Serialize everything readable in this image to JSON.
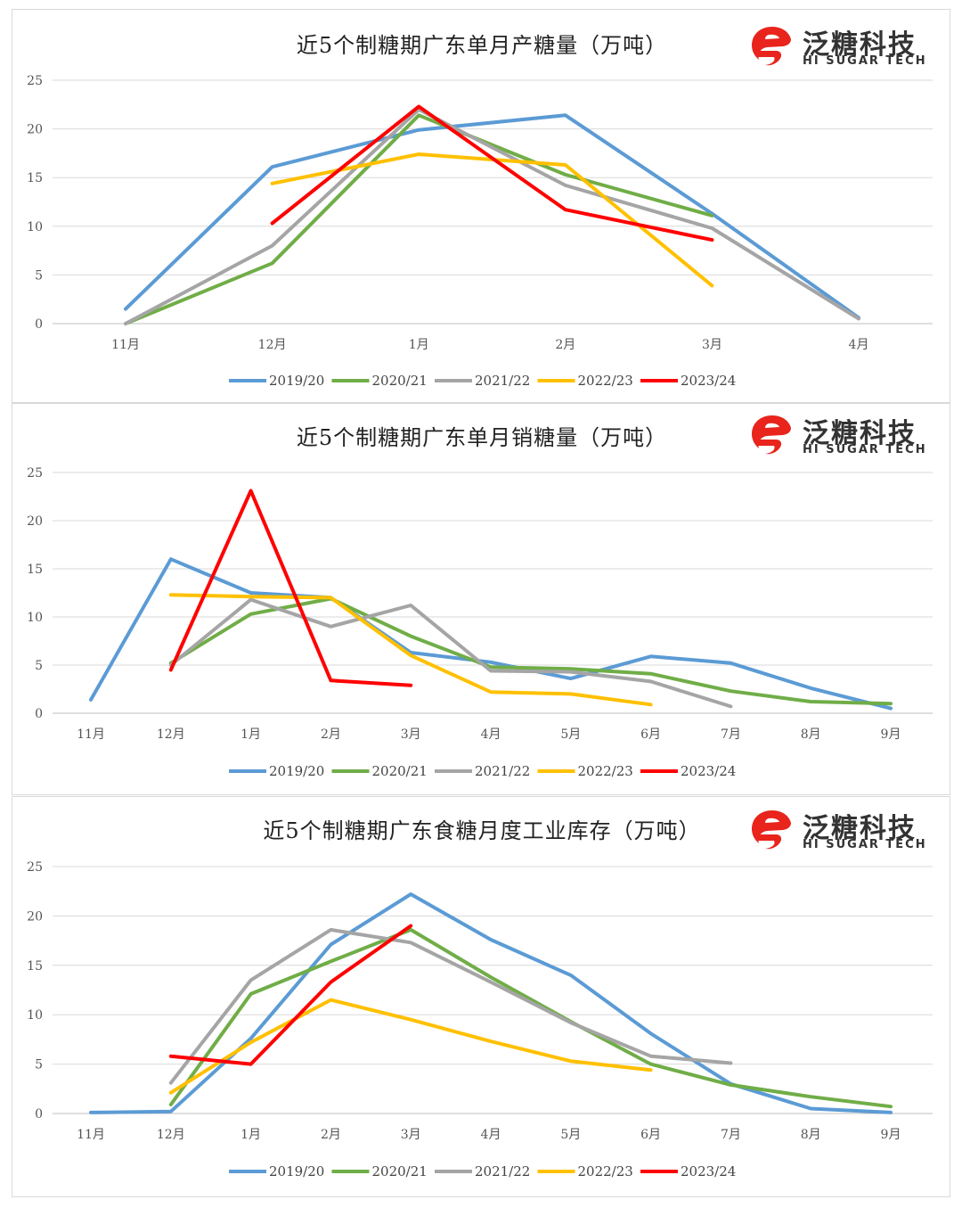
{
  "brand": {
    "name_cn": "泛糖科技",
    "name_en": "HI SUGAR TECH",
    "color": "#e8241c"
  },
  "colors": {
    "2019/20": "#5b9bd5",
    "2020/21": "#70ad47",
    "2021/22": "#a5a5a5",
    "2022/23": "#ffc000",
    "2023/24": "#ff0000"
  },
  "chart_data": [
    {
      "type": "line",
      "title": "近5个制糖期广东单月产糖量（万吨）",
      "categories": [
        "11月",
        "12月",
        "1月",
        "2月",
        "3月",
        "4月"
      ],
      "ylim": [
        0,
        25
      ],
      "yticks": [
        0,
        5,
        10,
        15,
        20,
        25
      ],
      "grid": true,
      "legend": "bottom",
      "series": [
        {
          "name": "2019/20",
          "values": [
            1.5,
            16.1,
            19.9,
            21.4,
            11.3,
            0.6
          ]
        },
        {
          "name": "2020/21",
          "values": [
            0,
            6.2,
            21.4,
            15.3,
            11.1,
            null
          ]
        },
        {
          "name": "2021/22",
          "values": [
            0,
            8.0,
            22.0,
            14.2,
            9.8,
            0.5
          ]
        },
        {
          "name": "2022/23",
          "values": [
            null,
            14.4,
            17.4,
            16.3,
            3.9,
            null
          ]
        },
        {
          "name": "2023/24",
          "values": [
            null,
            10.3,
            22.3,
            11.7,
            8.6,
            null
          ]
        }
      ]
    },
    {
      "type": "line",
      "title": "近5个制糖期广东单月销糖量（万吨）",
      "categories": [
        "11月",
        "12月",
        "1月",
        "2月",
        "3月",
        "4月",
        "5月",
        "6月",
        "7月",
        "8月",
        "9月"
      ],
      "ylim": [
        0,
        25
      ],
      "yticks": [
        0,
        5,
        10,
        15,
        20,
        25
      ],
      "grid": true,
      "legend": "bottom",
      "series": [
        {
          "name": "2019/20",
          "values": [
            1.4,
            16.0,
            12.5,
            12.0,
            6.3,
            5.3,
            3.6,
            5.9,
            5.2,
            2.6,
            0.5
          ]
        },
        {
          "name": "2020/21",
          "values": [
            null,
            5.2,
            10.3,
            11.9,
            8.0,
            4.8,
            4.6,
            4.1,
            2.3,
            1.2,
            1.0
          ]
        },
        {
          "name": "2021/22",
          "values": [
            null,
            5.0,
            11.8,
            9.0,
            11.2,
            4.4,
            4.3,
            3.3,
            0.7,
            null,
            null
          ]
        },
        {
          "name": "2022/23",
          "values": [
            null,
            12.3,
            12.1,
            12.0,
            6.0,
            2.2,
            2.0,
            0.9,
            null,
            null,
            null
          ]
        },
        {
          "name": "2023/24",
          "values": [
            null,
            4.5,
            23.1,
            3.4,
            2.9,
            null,
            null,
            null,
            null,
            null,
            null
          ]
        }
      ]
    },
    {
      "type": "line",
      "title": "近5个制糖期广东食糖月度工业库存（万吨）",
      "categories": [
        "11月",
        "12月",
        "1月",
        "2月",
        "3月",
        "4月",
        "5月",
        "6月",
        "7月",
        "8月",
        "9月"
      ],
      "ylim": [
        0,
        25
      ],
      "yticks": [
        0,
        5,
        10,
        15,
        20,
        25
      ],
      "grid": true,
      "legend": "bottom",
      "series": [
        {
          "name": "2019/20",
          "values": [
            0.1,
            0.2,
            7.6,
            17.1,
            22.2,
            17.6,
            14.0,
            8.1,
            3.0,
            0.5,
            0.1
          ]
        },
        {
          "name": "2020/21",
          "values": [
            null,
            0.9,
            12.1,
            15.4,
            18.6,
            13.8,
            9.3,
            5.0,
            2.9,
            1.7,
            0.7
          ]
        },
        {
          "name": "2021/22",
          "values": [
            null,
            3.1,
            13.5,
            18.6,
            17.3,
            13.3,
            9.2,
            5.8,
            5.1,
            null,
            null
          ]
        },
        {
          "name": "2022/23",
          "values": [
            null,
            2.1,
            7.2,
            11.5,
            9.5,
            7.3,
            5.3,
            4.4,
            null,
            null,
            null
          ]
        },
        {
          "name": "2023/24",
          "values": [
            null,
            5.8,
            5.0,
            13.3,
            19.0,
            null,
            null,
            null,
            null,
            null,
            null
          ]
        }
      ]
    }
  ]
}
